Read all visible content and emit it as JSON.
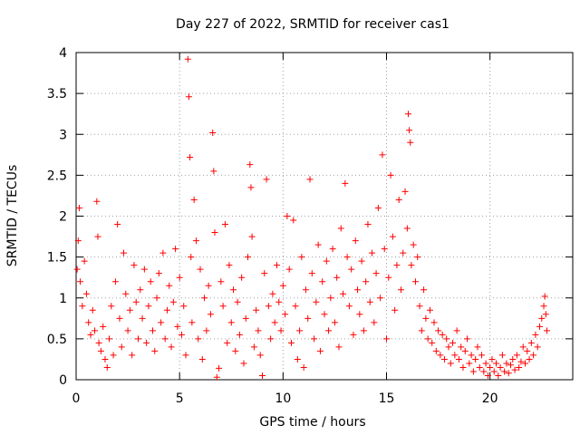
{
  "chart_data": {
    "type": "scatter",
    "title": "Day 227 of 2022, SRMTID for receiver cas1",
    "xlabel": "GPS time / hours",
    "ylabel": "SRMTID / TECUs",
    "xlim": [
      0,
      24
    ],
    "ylim": [
      0,
      4
    ],
    "xticks": [
      0,
      5,
      10,
      15,
      20
    ],
    "xtick_labels": [
      "0",
      "5",
      "10",
      "15",
      "20"
    ],
    "yticks": [
      0,
      0.5,
      1,
      1.5,
      2,
      2.5,
      3,
      3.5,
      4
    ],
    "ytick_labels": [
      "0",
      "0.5",
      "1",
      "1.5",
      "2",
      "2.5",
      "3",
      "3.5",
      "4"
    ],
    "grid": true,
    "marker": "+",
    "color": "#ff0000",
    "series": [
      {
        "name": "SRMTID",
        "points": [
          [
            0.05,
            1.35
          ],
          [
            0.1,
            1.7
          ],
          [
            0.15,
            2.1
          ],
          [
            0.2,
            1.2
          ],
          [
            0.3,
            0.9
          ],
          [
            0.4,
            1.45
          ],
          [
            0.5,
            1.05
          ],
          [
            0.6,
            0.7
          ],
          [
            0.7,
            0.55
          ],
          [
            0.8,
            0.85
          ],
          [
            0.9,
            0.6
          ],
          [
            1.0,
            2.18
          ],
          [
            1.05,
            1.75
          ],
          [
            1.1,
            0.45
          ],
          [
            1.2,
            0.35
          ],
          [
            1.3,
            0.65
          ],
          [
            1.4,
            0.25
          ],
          [
            1.5,
            0.15
          ],
          [
            1.6,
            0.5
          ],
          [
            1.7,
            0.9
          ],
          [
            1.8,
            0.3
          ],
          [
            1.9,
            1.2
          ],
          [
            2.0,
            1.9
          ],
          [
            2.1,
            0.75
          ],
          [
            2.2,
            0.4
          ],
          [
            2.3,
            1.55
          ],
          [
            2.4,
            1.05
          ],
          [
            2.5,
            0.6
          ],
          [
            2.6,
            0.85
          ],
          [
            2.7,
            0.3
          ],
          [
            2.8,
            1.4
          ],
          [
            2.9,
            0.95
          ],
          [
            3.0,
            0.5
          ],
          [
            3.1,
            1.1
          ],
          [
            3.2,
            0.75
          ],
          [
            3.3,
            1.35
          ],
          [
            3.4,
            0.45
          ],
          [
            3.5,
            0.9
          ],
          [
            3.6,
            1.2
          ],
          [
            3.7,
            0.6
          ],
          [
            3.8,
            0.35
          ],
          [
            3.9,
            1.0
          ],
          [
            4.0,
            1.3
          ],
          [
            4.1,
            0.7
          ],
          [
            4.2,
            1.55
          ],
          [
            4.3,
            0.5
          ],
          [
            4.4,
            0.85
          ],
          [
            4.5,
            1.15
          ],
          [
            4.6,
            0.4
          ],
          [
            4.7,
            0.95
          ],
          [
            4.8,
            1.6
          ],
          [
            4.9,
            0.65
          ],
          [
            5.0,
            1.25
          ],
          [
            5.1,
            0.55
          ],
          [
            5.2,
            0.9
          ],
          [
            5.3,
            0.3
          ],
          [
            5.4,
            3.92
          ],
          [
            5.45,
            3.46
          ],
          [
            5.5,
            2.72
          ],
          [
            5.55,
            1.5
          ],
          [
            5.6,
            0.7
          ],
          [
            5.7,
            2.2
          ],
          [
            5.8,
            1.7
          ],
          [
            5.9,
            0.5
          ],
          [
            6.0,
            1.35
          ],
          [
            6.1,
            0.25
          ],
          [
            6.2,
            1.0
          ],
          [
            6.3,
            0.6
          ],
          [
            6.4,
            1.15
          ],
          [
            6.5,
            0.8
          ],
          [
            6.6,
            3.02
          ],
          [
            6.65,
            2.55
          ],
          [
            6.7,
            1.8
          ],
          [
            6.8,
            0.03
          ],
          [
            6.9,
            0.14
          ],
          [
            7.0,
            1.2
          ],
          [
            7.1,
            0.9
          ],
          [
            7.2,
            1.9
          ],
          [
            7.3,
            0.45
          ],
          [
            7.4,
            1.4
          ],
          [
            7.5,
            0.7
          ],
          [
            7.6,
            1.1
          ],
          [
            7.7,
            0.35
          ],
          [
            7.8,
            0.95
          ],
          [
            7.9,
            0.55
          ],
          [
            8.0,
            1.25
          ],
          [
            8.1,
            0.2
          ],
          [
            8.2,
            0.75
          ],
          [
            8.3,
            1.5
          ],
          [
            8.4,
            2.63
          ],
          [
            8.45,
            2.35
          ],
          [
            8.5,
            1.75
          ],
          [
            8.6,
            0.4
          ],
          [
            8.7,
            0.85
          ],
          [
            8.8,
            0.6
          ],
          [
            8.9,
            0.3
          ],
          [
            9.0,
            0.05
          ],
          [
            9.1,
            1.3
          ],
          [
            9.2,
            2.45
          ],
          [
            9.3,
            0.9
          ],
          [
            9.4,
            0.5
          ],
          [
            9.5,
            1.05
          ],
          [
            9.6,
            0.7
          ],
          [
            9.7,
            1.4
          ],
          [
            9.8,
            0.95
          ],
          [
            9.9,
            0.6
          ],
          [
            10.0,
            1.15
          ],
          [
            10.1,
            0.8
          ],
          [
            10.2,
            2.0
          ],
          [
            10.3,
            1.35
          ],
          [
            10.4,
            0.45
          ],
          [
            10.5,
            1.95
          ],
          [
            10.6,
            0.9
          ],
          [
            10.7,
            0.25
          ],
          [
            10.8,
            0.6
          ],
          [
            10.9,
            1.5
          ],
          [
            11.0,
            0.15
          ],
          [
            11.1,
            1.1
          ],
          [
            11.2,
            0.75
          ],
          [
            11.3,
            2.45
          ],
          [
            11.4,
            1.3
          ],
          [
            11.5,
            0.5
          ],
          [
            11.6,
            0.95
          ],
          [
            11.7,
            1.65
          ],
          [
            11.8,
            0.35
          ],
          [
            11.9,
            1.2
          ],
          [
            12.0,
            0.8
          ],
          [
            12.1,
            1.45
          ],
          [
            12.2,
            0.6
          ],
          [
            12.3,
            1.0
          ],
          [
            12.4,
            1.6
          ],
          [
            12.5,
            0.7
          ],
          [
            12.6,
            1.25
          ],
          [
            12.7,
            0.4
          ],
          [
            12.8,
            1.85
          ],
          [
            12.9,
            1.05
          ],
          [
            13.0,
            2.4
          ],
          [
            13.1,
            1.5
          ],
          [
            13.2,
            0.9
          ],
          [
            13.3,
            1.35
          ],
          [
            13.4,
            0.55
          ],
          [
            13.5,
            1.7
          ],
          [
            13.6,
            1.1
          ],
          [
            13.7,
            0.8
          ],
          [
            13.8,
            1.45
          ],
          [
            13.9,
            0.6
          ],
          [
            14.0,
            1.2
          ],
          [
            14.1,
            1.9
          ],
          [
            14.2,
            0.95
          ],
          [
            14.3,
            1.55
          ],
          [
            14.4,
            0.7
          ],
          [
            14.5,
            1.3
          ],
          [
            14.6,
            2.1
          ],
          [
            14.7,
            1.0
          ],
          [
            14.8,
            2.75
          ],
          [
            14.9,
            1.6
          ],
          [
            15.0,
            0.5
          ],
          [
            15.1,
            1.25
          ],
          [
            15.2,
            2.5
          ],
          [
            15.3,
            1.75
          ],
          [
            15.4,
            0.85
          ],
          [
            15.5,
            1.4
          ],
          [
            15.6,
            2.2
          ],
          [
            15.7,
            1.1
          ],
          [
            15.8,
            1.55
          ],
          [
            15.9,
            2.3
          ],
          [
            16.0,
            1.85
          ],
          [
            16.05,
            3.25
          ],
          [
            16.1,
            3.05
          ],
          [
            16.15,
            2.9
          ],
          [
            16.2,
            1.4
          ],
          [
            16.3,
            1.65
          ],
          [
            16.4,
            1.2
          ],
          [
            16.5,
            1.5
          ],
          [
            16.6,
            0.9
          ],
          [
            16.7,
            0.6
          ],
          [
            16.8,
            1.1
          ],
          [
            16.9,
            0.75
          ],
          [
            17.0,
            0.5
          ],
          [
            17.1,
            0.85
          ],
          [
            17.2,
            0.45
          ],
          [
            17.3,
            0.7
          ],
          [
            17.4,
            0.35
          ],
          [
            17.5,
            0.6
          ],
          [
            17.6,
            0.3
          ],
          [
            17.7,
            0.55
          ],
          [
            17.8,
            0.25
          ],
          [
            17.9,
            0.5
          ],
          [
            18.0,
            0.4
          ],
          [
            18.1,
            0.2
          ],
          [
            18.2,
            0.45
          ],
          [
            18.3,
            0.3
          ],
          [
            18.4,
            0.6
          ],
          [
            18.5,
            0.25
          ],
          [
            18.6,
            0.4
          ],
          [
            18.7,
            0.15
          ],
          [
            18.8,
            0.35
          ],
          [
            18.9,
            0.5
          ],
          [
            19.0,
            0.2
          ],
          [
            19.1,
            0.3
          ],
          [
            19.2,
            0.1
          ],
          [
            19.3,
            0.25
          ],
          [
            19.4,
            0.4
          ],
          [
            19.5,
            0.15
          ],
          [
            19.6,
            0.3
          ],
          [
            19.7,
            0.1
          ],
          [
            19.8,
            0.2
          ],
          [
            19.9,
            0.05
          ],
          [
            20.0,
            0.15
          ],
          [
            20.1,
            0.25
          ],
          [
            20.2,
            0.1
          ],
          [
            20.3,
            0.2
          ],
          [
            20.4,
            0.05
          ],
          [
            20.5,
            0.15
          ],
          [
            20.6,
            0.3
          ],
          [
            20.7,
            0.1
          ],
          [
            20.8,
            0.2
          ],
          [
            20.9,
            0.08
          ],
          [
            21.0,
            0.18
          ],
          [
            21.1,
            0.25
          ],
          [
            21.2,
            0.12
          ],
          [
            21.3,
            0.3
          ],
          [
            21.4,
            0.15
          ],
          [
            21.5,
            0.22
          ],
          [
            21.6,
            0.4
          ],
          [
            21.7,
            0.2
          ],
          [
            21.8,
            0.35
          ],
          [
            21.9,
            0.25
          ],
          [
            22.0,
            0.45
          ],
          [
            22.1,
            0.3
          ],
          [
            22.2,
            0.55
          ],
          [
            22.3,
            0.4
          ],
          [
            22.4,
            0.65
          ],
          [
            22.5,
            0.75
          ],
          [
            22.6,
            0.9
          ],
          [
            22.65,
            1.02
          ],
          [
            22.7,
            0.8
          ],
          [
            22.75,
            0.6
          ]
        ]
      }
    ]
  }
}
